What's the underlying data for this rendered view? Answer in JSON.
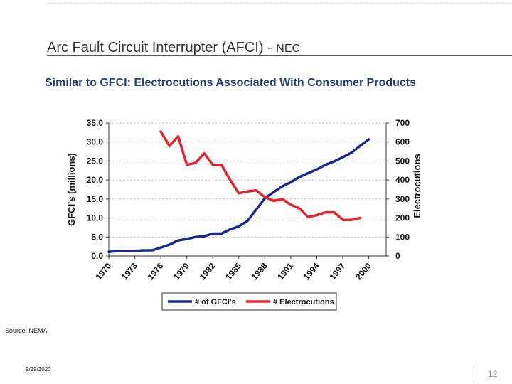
{
  "slide": {
    "title": "Arc Fault Circuit Interrupter (AFCI) - ",
    "title_suffix": "NEC",
    "subtitle": "Similar to GFCI: Electrocutions Associated With Consumer Products",
    "source": "Source: NEMA",
    "date": "9/29/2020",
    "page_number": "12"
  },
  "chart_data": {
    "type": "line",
    "title": "",
    "xlabel": "",
    "ylabel": "GFCI's (millions)",
    "y2label": "Electrocutions",
    "x_ticks": [
      "1970",
      "1973",
      "1976",
      "1979",
      "1982",
      "1985",
      "1988",
      "1991",
      "1994",
      "1997",
      "2000"
    ],
    "xlim": [
      1970,
      2002
    ],
    "ylim": [
      0,
      35
    ],
    "y_ticks": [
      "0.0",
      "5.0",
      "10.0",
      "15.0",
      "20.0",
      "25.0",
      "30.0",
      "35.0"
    ],
    "y2lim": [
      0,
      700
    ],
    "y2_ticks": [
      "0",
      "100",
      "200",
      "300",
      "400",
      "500",
      "600",
      "700"
    ],
    "grid": true,
    "legend": "bottom",
    "series": [
      {
        "name": "# of GFCI's",
        "axis": "left",
        "color": "#1a2a8c",
        "x": [
          1970,
          1971,
          1972,
          1973,
          1974,
          1975,
          1976,
          1977,
          1978,
          1979,
          1980,
          1981,
          1982,
          1983,
          1984,
          1985,
          1986,
          1987,
          1988,
          1989,
          1990,
          1991,
          1992,
          1993,
          1994,
          1995,
          1996,
          1997,
          1998,
          1999,
          2000
        ],
        "values": [
          1.1,
          1.3,
          1.3,
          1.3,
          1.5,
          1.5,
          2.2,
          3.0,
          4.1,
          4.5,
          5.0,
          5.2,
          5.9,
          5.9,
          7.0,
          7.8,
          9.2,
          12.2,
          15.2,
          16.8,
          18.3,
          19.4,
          20.8,
          21.8,
          22.8,
          24.0,
          24.9,
          26.0,
          27.2,
          29.0,
          30.7
        ]
      },
      {
        "name": "# Electrocutions",
        "axis": "right",
        "color": "#e8232a",
        "x": [
          1976,
          1977,
          1978,
          1979,
          1980,
          1981,
          1982,
          1983,
          1984,
          1985,
          1986,
          1987,
          1988,
          1989,
          1990,
          1991,
          1992,
          1993,
          1994,
          1995,
          1996,
          1997,
          1998,
          1999
        ],
        "values": [
          655,
          580,
          630,
          480,
          490,
          540,
          480,
          480,
          400,
          330,
          340,
          345,
          310,
          290,
          300,
          270,
          250,
          205,
          215,
          230,
          230,
          190,
          190,
          200
        ]
      }
    ]
  }
}
